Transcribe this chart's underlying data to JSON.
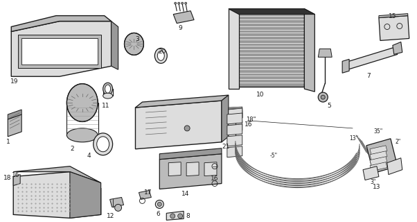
{
  "figsize": [
    6.02,
    3.2
  ],
  "dpi": 100,
  "bg": "#ffffff",
  "lc": "#1a1a1a",
  "gray1": "#333333",
  "gray2": "#666666",
  "gray3": "#999999",
  "gray4": "#bbbbbb",
  "gray5": "#dddddd"
}
